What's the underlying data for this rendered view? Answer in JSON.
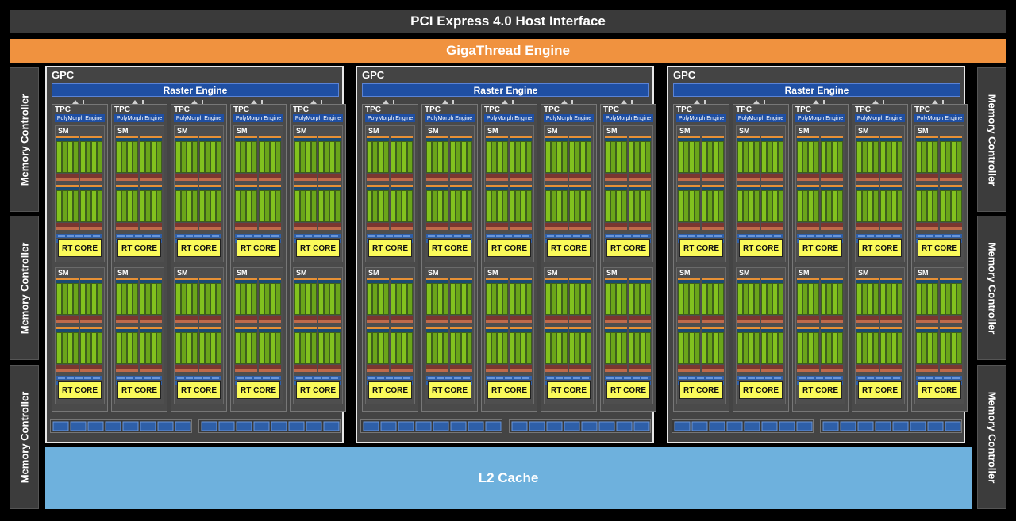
{
  "pci_label": "PCI Express 4.0 Host Interface",
  "gigathread_label": "GigaThread Engine",
  "memory_controller_label": "Memory Controller",
  "l2_label": "L2 Cache",
  "gpc_label": "GPC",
  "raster_label": "Raster Engine",
  "tpc_label": "TPC",
  "polymorph_label": "PolyMorph Engine",
  "sm_label": "SM",
  "rt_core_label": "RT CORE",
  "colors": {
    "background": "#000000",
    "gigathread": "#f0923f",
    "l2_cache": "#6eb1dd",
    "raster_blue": "#1f4fa3",
    "rt_core": "#fafa5a",
    "cuda_green": "#76b900"
  },
  "structure": {
    "gpc_count": 3,
    "tpc_per_gpc": 5,
    "sm_per_tpc": 2,
    "memory_controllers_left": 3,
    "memory_controllers_right": 3
  }
}
